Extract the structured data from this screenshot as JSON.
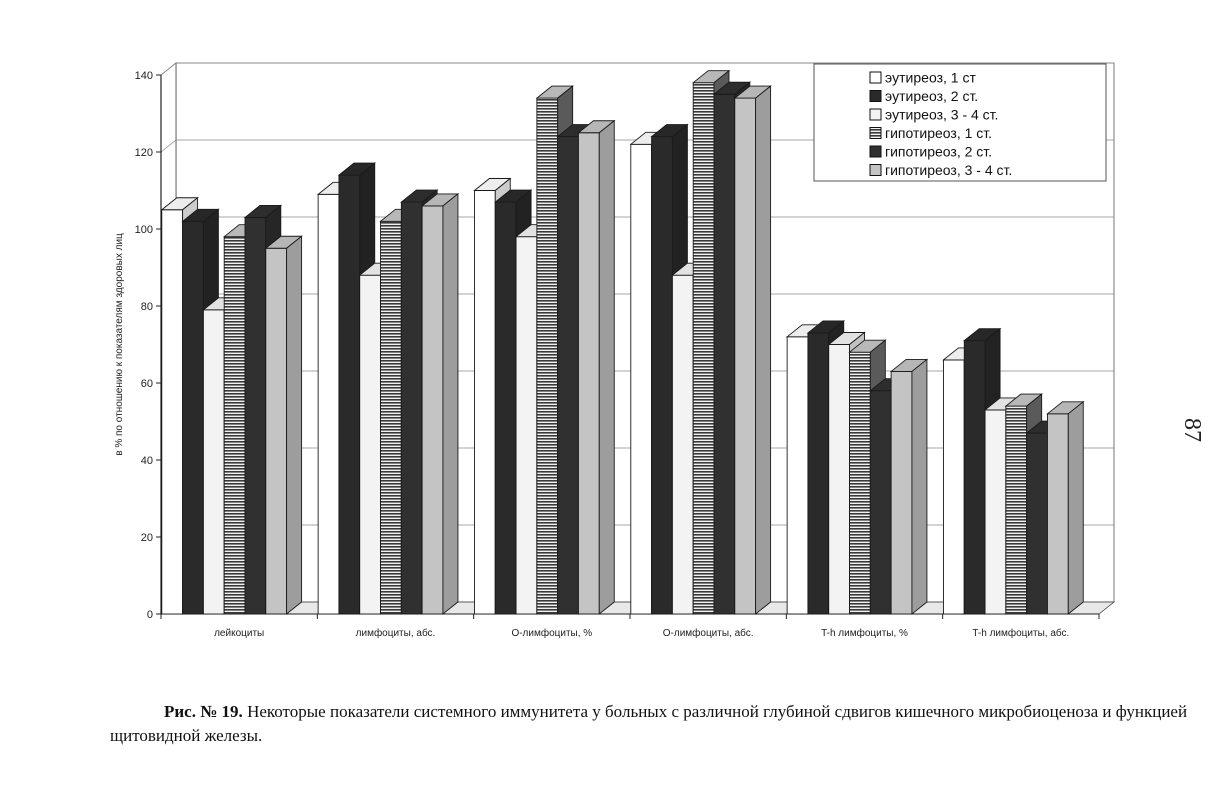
{
  "chart_data": {
    "type": "bar",
    "ylabel": "в % по отношению к показателям здоровых лиц",
    "ylim": [
      0,
      140
    ],
    "yticks": [
      0,
      20,
      40,
      60,
      80,
      100,
      120,
      140
    ],
    "grid": true,
    "legend_position": "top-right",
    "categories": [
      "лейкоциты",
      "лимфоциты, абс.",
      "О-лимфоциты, %",
      "О-лимфоциты, абс.",
      "T-h лимфоциты, %",
      "T-h лимфоциты, абс."
    ],
    "series": [
      {
        "name": "эутиреоз, 1 ст",
        "values": [
          105,
          109,
          110,
          122,
          72,
          66
        ],
        "color": "#ffffff",
        "pattern": "solid"
      },
      {
        "name": "эутиреоз, 2 ст.",
        "values": [
          102,
          114,
          107,
          124,
          73,
          71
        ],
        "color": "#2a2a2a",
        "pattern": "solid"
      },
      {
        "name": "эутиреоз, 3 - 4 ст.",
        "values": [
          79,
          88,
          98,
          88,
          70,
          53
        ],
        "color": "#f3f3f3",
        "pattern": "solid"
      },
      {
        "name": "гипотиреоз, 1 ст.",
        "values": [
          98,
          102,
          134,
          138,
          68,
          54
        ],
        "color": "#777777",
        "pattern": "stripes"
      },
      {
        "name": "гипотиреоз, 2 ст.",
        "values": [
          103,
          107,
          124,
          135,
          58,
          47
        ],
        "color": "#303030",
        "pattern": "solid"
      },
      {
        "name": "гипотиреоз, 3 - 4 ст.",
        "values": [
          95,
          106,
          125,
          134,
          63,
          52
        ],
        "color": "#c4c4c4",
        "pattern": "solid"
      }
    ]
  },
  "caption": {
    "label": "Рис. № 19.",
    "text": " Некоторые показатели системного иммунитета у больных с различной глубиной сдвигов кишечного микробиоценоза и функцией щитовидной железы."
  },
  "page_number": "87"
}
